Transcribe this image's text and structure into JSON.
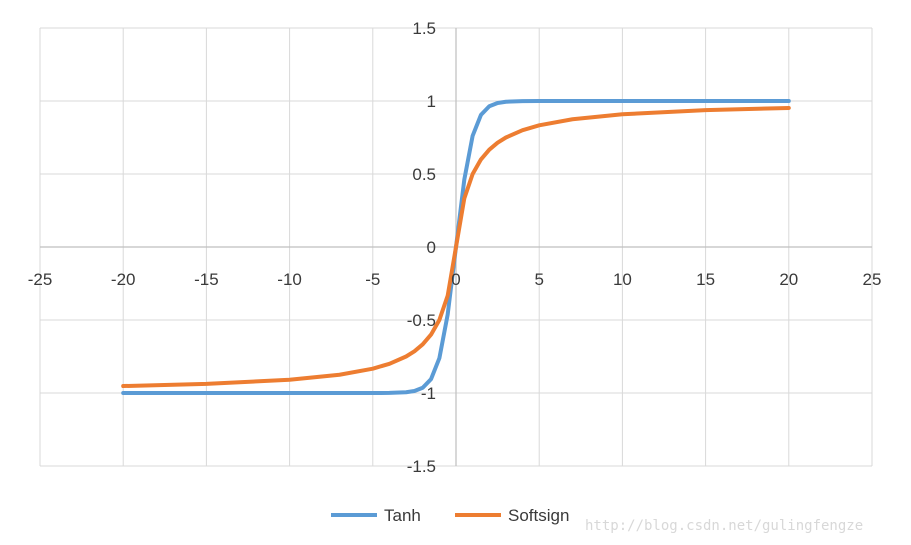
{
  "chart_data": {
    "type": "line",
    "title": "",
    "xlabel": "",
    "ylabel": "",
    "xlim": [
      -25,
      25
    ],
    "ylim": [
      -1.5,
      1.5
    ],
    "x_ticks": [
      -25,
      -20,
      -15,
      -10,
      -5,
      0,
      5,
      10,
      15,
      20,
      25
    ],
    "y_ticks": [
      -1.5,
      -1,
      -0.5,
      0,
      0.5,
      1,
      1.5
    ],
    "grid": true,
    "legend_position": "bottom",
    "series": [
      {
        "name": "Tanh",
        "color": "#5b9bd5",
        "x": [
          -20,
          -15,
          -10,
          -5,
          -4,
          -3,
          -2.5,
          -2,
          -1.5,
          -1,
          -0.5,
          0,
          0.5,
          1,
          1.5,
          2,
          2.5,
          3,
          4,
          5,
          10,
          15,
          20
        ],
        "y": [
          -1,
          -1,
          -1,
          -0.9999,
          -0.9993,
          -0.9951,
          -0.9866,
          -0.964,
          -0.9051,
          -0.7616,
          -0.4621,
          0,
          0.4621,
          0.7616,
          0.9051,
          0.964,
          0.9866,
          0.9951,
          0.9993,
          0.9999,
          1,
          1,
          1
        ]
      },
      {
        "name": "Softsign",
        "color": "#ed7d31",
        "x": [
          -20,
          -15,
          -10,
          -7,
          -5,
          -4,
          -3,
          -2.5,
          -2,
          -1.5,
          -1,
          -0.5,
          0,
          0.5,
          1,
          1.5,
          2,
          2.5,
          3,
          4,
          5,
          7,
          10,
          15,
          20
        ],
        "y": [
          -0.9524,
          -0.9375,
          -0.9091,
          -0.875,
          -0.8333,
          -0.8,
          -0.75,
          -0.7143,
          -0.6667,
          -0.6,
          -0.5,
          -0.3333,
          0,
          0.3333,
          0.5,
          0.6,
          0.6667,
          0.7143,
          0.75,
          0.8,
          0.8333,
          0.875,
          0.9091,
          0.9375,
          0.9524
        ]
      }
    ]
  },
  "legend": {
    "items": [
      {
        "label": "Tanh",
        "color": "#5b9bd5"
      },
      {
        "label": "Softsign",
        "color": "#ed7d31"
      }
    ]
  },
  "watermark": "http://blog.csdn.net/gulingfengze"
}
